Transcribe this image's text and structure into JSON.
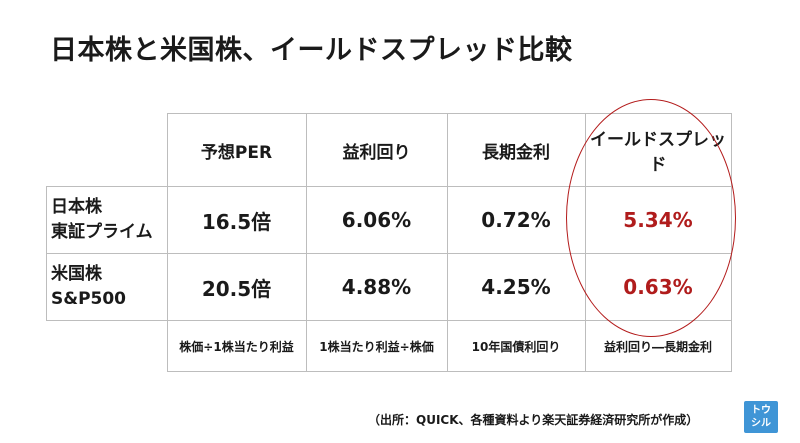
{
  "title": "日本株と米国株、イールドスプレッド比較",
  "table": {
    "headers": [
      "予想PER",
      "益利回り",
      "長期金利",
      "イールドスプレッド"
    ],
    "rows": [
      {
        "label_line1": "日本株",
        "label_line2": "東証プライム",
        "per": "16.5倍",
        "earnings_yield": "6.06%",
        "long_rate": "0.72%",
        "yield_spread": "5.34%"
      },
      {
        "label_line1": "米国株",
        "label_line2": "S&P500",
        "per": "20.5倍",
        "earnings_yield": "4.88%",
        "long_rate": "4.25%",
        "yield_spread": "0.63%"
      }
    ],
    "formulas": [
      "株価÷1株当たり利益",
      "1株当たり利益÷株価",
      "10年国債利回り",
      "益利回り―長期金利"
    ]
  },
  "source": "（出所：QUICK、各種資料より楽天証券経済研究所が作成）",
  "logo": {
    "line1": "トウ",
    "line2": "シル"
  },
  "colors": {
    "highlight": "#b01c1c",
    "logo_bg": "#3f95d6",
    "grid": "#bdbdbd"
  }
}
